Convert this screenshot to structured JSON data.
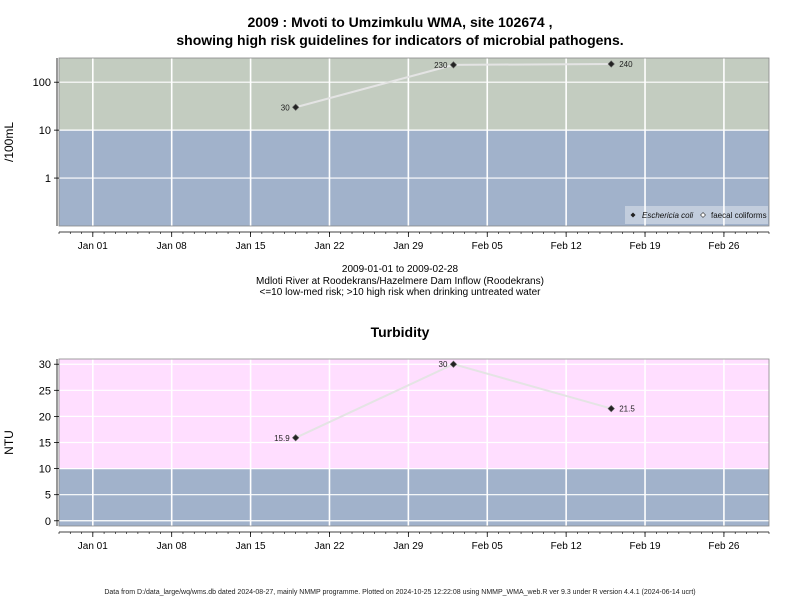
{
  "chart_data": [
    {
      "type": "line",
      "title": "2009 : Mvoti to Umzimkulu WMA, site 102674 ,",
      "subtitle": "showing high risk guidelines for indicators of microbial pathogens.",
      "ylabel": "/100mL",
      "y_scale": "log",
      "yticks": [
        1,
        10,
        100
      ],
      "ytick_labels": [
        "1",
        "10",
        "100"
      ],
      "x_tick_labels": [
        "Jan 01",
        "Jan 08",
        "Jan 15",
        "Jan 22",
        "Jan 29",
        "Feb 05",
        "Feb 12",
        "Feb 19",
        "Feb 26"
      ],
      "xlim": [
        "2008-12-29",
        "2009-03-02"
      ],
      "risk_threshold": 10,
      "grid": true,
      "legend_position": "bottom-right",
      "series": [
        {
          "name": "Eschericia coli",
          "x": [
            "2009-01-19",
            "2009-02-02",
            "2009-02-16"
          ],
          "values": [
            30,
            230,
            240
          ],
          "labels": [
            "30",
            "230",
            "240"
          ]
        },
        {
          "name": "faecal coliforms",
          "x": [],
          "values": [],
          "labels": []
        }
      ],
      "colors": {
        "high_band": "#c3ccc0",
        "low_band": "#a1b2cb",
        "line": "#e4e4e4"
      }
    },
    {
      "type": "line",
      "title": "Turbidity",
      "ylabel": "NTU",
      "ylim": [
        -1,
        31
      ],
      "yticks": [
        0,
        5,
        10,
        15,
        20,
        25,
        30
      ],
      "x_tick_labels": [
        "Jan 01",
        "Jan 08",
        "Jan 15",
        "Jan 22",
        "Jan 29",
        "Feb 05",
        "Feb 12",
        "Feb 19",
        "Feb 26"
      ],
      "xlim": [
        "2008-12-29",
        "2009-03-02"
      ],
      "risk_threshold": 10,
      "grid": true,
      "series": [
        {
          "x": [
            "2009-01-19",
            "2009-02-02",
            "2009-02-16"
          ],
          "values": [
            15.9,
            30,
            21.5
          ],
          "labels": [
            "15.9",
            "30",
            "21.5"
          ]
        }
      ],
      "colors": {
        "high_band": "#ffdeff",
        "low_band": "#a1b2cb",
        "line": "#e4e4e4"
      }
    }
  ],
  "caption": {
    "date_range": "2009-01-01 to 2009-02-28",
    "site": "Mdloti River at Roodekrans/Hazelmere Dam Inflow (Roodekrans)",
    "guideline": "<=10 low-med risk; >10 high risk when drinking untreated water"
  },
  "footer": "Data from D:/data_large/wq/wms.db dated 2024-08-27, mainly NMMP programme. Plotted on 2024-10-25 12:22:08 using NMMP_WMA_web.R ver 9.3 under R version 4.4.1 (2024-06-14 ucrt)"
}
